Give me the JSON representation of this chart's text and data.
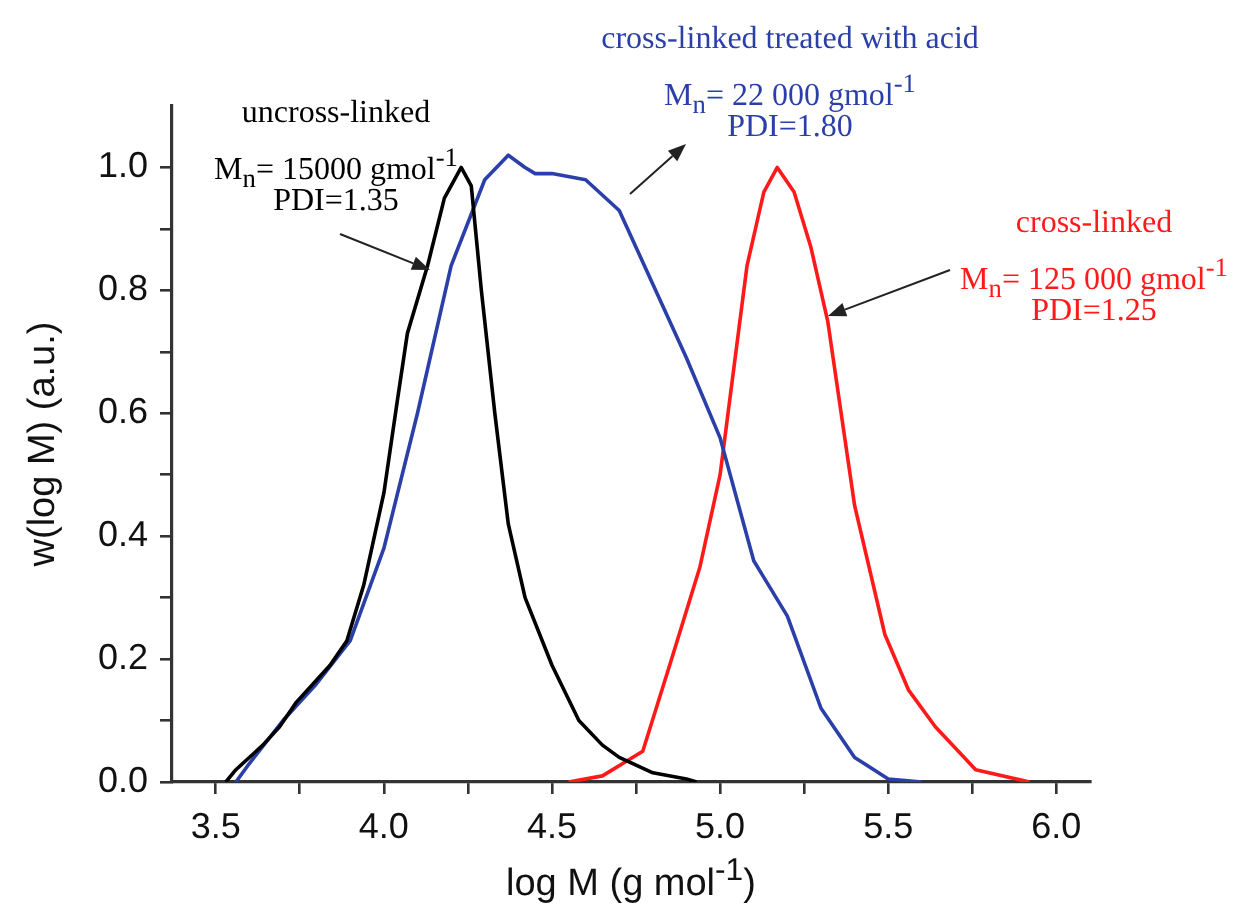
{
  "chart_data": {
    "type": "line",
    "xlabel": "log M (g mol$^{-1}$)",
    "ylabel": "w(log M) (a.u.)",
    "xlim": [
      3.37,
      6.1
    ],
    "ylim": [
      0,
      1.1
    ],
    "xticks": [
      3.5,
      {
        "value": 3.75,
        "label": null
      },
      {
        "value": 4,
        "label": "4.0"
      },
      {
        "value": 4.25,
        "label": null
      },
      4.5,
      {
        "value": 4.75,
        "label": null
      },
      {
        "value": 5,
        "label": "5.0"
      },
      {
        "value": 5.25,
        "label": null
      },
      5.5,
      {
        "value": 5.75,
        "label": null
      },
      {
        "value": 6,
        "label": "6.0"
      }
    ],
    "yticks": [
      {
        "value": 0,
        "label": "0.0"
      },
      {
        "value": 0.1,
        "label": null
      },
      0.2,
      {
        "value": 0.3,
        "label": null
      },
      0.4,
      {
        "value": 0.5,
        "label": null
      },
      0.6,
      {
        "value": 0.7,
        "label": null
      },
      0.8,
      {
        "value": 0.9,
        "label": null
      },
      {
        "value": 1,
        "label": "1.0"
      }
    ],
    "grid": false,
    "legend": false,
    "marker": "none",
    "line_style": "solid",
    "series": [
      {
        "color": "#000000",
        "x": [
          3.53,
          3.56,
          3.59,
          3.64,
          3.69,
          3.74,
          3.79,
          3.84,
          3.89,
          3.94,
          4.0,
          4.04,
          4.07,
          4.13,
          4.18,
          4.23,
          4.26,
          4.29,
          4.33,
          4.37,
          4.42,
          4.5,
          4.58,
          4.65,
          4.7,
          4.8,
          4.9,
          4.93
        ],
        "values": [
          0,
          0.02,
          0.035,
          0.06,
          0.09,
          0.13,
          0.16,
          0.19,
          0.23,
          0.32,
          0.47,
          0.62,
          0.73,
          0.84,
          0.95,
          1.0,
          0.97,
          0.8,
          0.6,
          0.42,
          0.3,
          0.19,
          0.1,
          0.06,
          0.04,
          0.015,
          0.005,
          0
        ]
      },
      {
        "color": "#2b3fa8",
        "x": [
          3.56,
          3.6,
          3.7,
          3.8,
          3.9,
          4.0,
          4.1,
          4.2,
          4.3,
          4.37,
          4.42,
          4.45,
          4.5,
          4.6,
          4.7,
          4.8,
          4.9,
          5.0,
          5.1,
          5.2,
          5.3,
          5.4,
          5.5,
          5.6
        ],
        "values": [
          0,
          0.03,
          0.1,
          0.16,
          0.23,
          0.38,
          0.6,
          0.84,
          0.98,
          1.02,
          1.0,
          0.99,
          0.99,
          0.98,
          0.93,
          0.81,
          0.69,
          0.56,
          0.36,
          0.27,
          0.12,
          0.04,
          0.005,
          0
        ]
      },
      {
        "color": "#ff1a1a",
        "x": [
          4.55,
          4.65,
          4.77,
          4.85,
          4.94,
          5.0,
          5.08,
          5.13,
          5.17,
          5.22,
          5.27,
          5.32,
          5.4,
          5.49,
          5.56,
          5.64,
          5.76,
          5.92
        ],
        "values": [
          0,
          0.01,
          0.05,
          0.19,
          0.35,
          0.5,
          0.84,
          0.96,
          1.0,
          0.96,
          0.87,
          0.75,
          0.45,
          0.24,
          0.15,
          0.09,
          0.02,
          0
        ]
      }
    ],
    "annotations": [
      "uncross-linked",
      "M$_{n}$= 15000 gmol$^{-1}$",
      "PDI=1.35",
      "cross-linked treated with acid",
      "M$_{n}$= 22 000 gmol$^{-1}$",
      "PDI=1.80",
      "cross-linked",
      "M$_{n}$= 125 000 gmol$^{-1}$",
      "PDI=1.25"
    ]
  }
}
